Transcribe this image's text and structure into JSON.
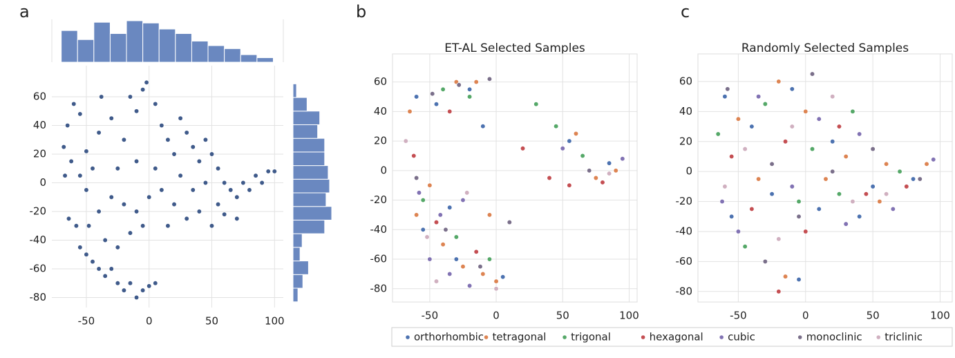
{
  "chart_data": [
    {
      "type": "scatter",
      "panel_label": "a",
      "color": "#3f5a8a",
      "hist_color": "#6a88c0",
      "grid": true,
      "xlim": [
        -77.5,
        107
      ],
      "ylim": [
        -87,
        81.7
      ],
      "xticks": [
        -50,
        0,
        50,
        100
      ],
      "yticks": [
        -80,
        -60,
        -40,
        -20,
        0,
        20,
        40,
        60
      ],
      "x": [
        -60,
        -55,
        -65,
        -68,
        -62,
        -67,
        -55,
        -45,
        -50,
        -40,
        -38,
        -30,
        -20,
        -15,
        -10,
        -5,
        -2,
        5,
        10,
        15,
        20,
        25,
        30,
        35,
        40,
        45,
        50,
        55,
        60,
        65,
        70,
        75,
        80,
        85,
        90,
        95,
        100,
        -64,
        -58,
        -55,
        -50,
        -45,
        -40,
        -35,
        -30,
        -25,
        -20,
        -15,
        -10,
        -5,
        0,
        5,
        -40,
        -30,
        -20,
        -10,
        0,
        10,
        20,
        30,
        40,
        50,
        60,
        70,
        -50,
        -35,
        -25,
        -15,
        -5,
        15,
        25,
        5,
        -10,
        -25,
        45,
        35,
        55,
        -48
      ],
      "y": [
        55,
        48,
        40,
        25,
        15,
        5,
        5,
        10,
        22,
        35,
        60,
        45,
        30,
        60,
        50,
        65,
        70,
        55,
        40,
        30,
        20,
        45,
        35,
        25,
        15,
        30,
        20,
        10,
        0,
        -5,
        -10,
        0,
        -5,
        5,
        0,
        8,
        8,
        -25,
        -30,
        -45,
        -50,
        -55,
        -60,
        -65,
        -60,
        -70,
        -75,
        -70,
        -80,
        -75,
        -72,
        -70,
        -20,
        -10,
        -15,
        -20,
        -10,
        -5,
        -15,
        -25,
        -20,
        -30,
        -22,
        -25,
        -5,
        -40,
        -45,
        -35,
        -30,
        -30,
        5,
        10,
        15,
        10,
        0,
        -5,
        -15,
        -30
      ],
      "top_hist": {
        "bins": [
          -70,
          -57,
          -44,
          -31,
          -18,
          -5,
          8,
          21,
          34,
          47,
          60,
          73,
          86,
          99
        ],
        "counts": [
          42,
          30,
          53,
          38,
          55,
          52,
          44,
          38,
          28,
          22,
          18,
          10,
          6
        ]
      },
      "right_hist": {
        "bins": [
          -83,
          -73.5,
          -64,
          -54.5,
          -45,
          -35.5,
          -26,
          -16.5,
          -7,
          2.5,
          12,
          21.5,
          31,
          40.5,
          50,
          59.5,
          69
        ],
        "counts": [
          7,
          14,
          22,
          10,
          13,
          45,
          55,
          47,
          52,
          50,
          45,
          45,
          35,
          38,
          20,
          5
        ]
      }
    },
    {
      "type": "scatter",
      "panel_label": "b",
      "title": "ET-AL Selected Samples",
      "grid": true,
      "xlim": [
        -78,
        106
      ],
      "ylim": [
        -89,
        79
      ],
      "xticks": [
        -50,
        0,
        50,
        100
      ],
      "yticks": [
        -80,
        -60,
        -40,
        -20,
        0,
        20,
        40,
        60
      ],
      "series": [
        {
          "name": "orthorhombic",
          "color": "#4c72b0",
          "x": [
            -60,
            -45,
            -20,
            -35,
            -55,
            5,
            55,
            85,
            -10,
            -30
          ],
          "y": [
            50,
            45,
            55,
            -25,
            -40,
            -72,
            20,
            5,
            30,
            -60
          ]
        },
        {
          "name": "tetragonal",
          "color": "#dd8452",
          "x": [
            -65,
            -50,
            -30,
            -15,
            -40,
            -25,
            -10,
            0,
            60,
            75,
            90,
            -5,
            -60
          ],
          "y": [
            40,
            -10,
            60,
            60,
            -50,
            -65,
            -70,
            -75,
            25,
            -5,
            0,
            -30,
            -30
          ]
        },
        {
          "name": "trigonal",
          "color": "#55a868",
          "x": [
            -40,
            -20,
            30,
            45,
            -55,
            -30,
            -5,
            65
          ],
          "y": [
            55,
            50,
            45,
            30,
            -20,
            -45,
            -60,
            10
          ]
        },
        {
          "name": "hexagonal",
          "color": "#c44e52",
          "x": [
            -62,
            -35,
            20,
            40,
            -45,
            -15,
            55,
            80
          ],
          "y": [
            10,
            40,
            15,
            -5,
            -35,
            -55,
            -10,
            -8
          ]
        },
        {
          "name": "cubic",
          "color": "#8172b3",
          "x": [
            -58,
            -42,
            -25,
            -50,
            -35,
            -20,
            50,
            95
          ],
          "y": [
            -15,
            -30,
            -20,
            -60,
            -70,
            -78,
            15,
            8
          ]
        },
        {
          "name": "monoclinic",
          "color": "#7a6f8a",
          "x": [
            -48,
            -28,
            -60,
            -38,
            -12,
            70,
            -5,
            10
          ],
          "y": [
            52,
            58,
            -5,
            -40,
            -65,
            0,
            62,
            -35
          ]
        },
        {
          "name": "triclinic",
          "color": "#d0b0c0",
          "x": [
            -68,
            -52,
            -22,
            -45,
            0,
            85
          ],
          "y": [
            20,
            -45,
            -15,
            -75,
            -80,
            -2
          ]
        }
      ]
    },
    {
      "type": "scatter",
      "panel_label": "c",
      "title": "Randomly Selected Samples",
      "grid": true,
      "xlim": [
        -80,
        109
      ],
      "ylim": [
        -87,
        78.4
      ],
      "xticks": [
        -50,
        0,
        50,
        100
      ],
      "yticks": [
        -80,
        -60,
        -40,
        -20,
        0,
        20,
        40,
        60
      ],
      "series": [
        {
          "name": "orthorhombic",
          "color": "#4c72b0",
          "x": [
            -60,
            -40,
            -10,
            20,
            50,
            80,
            -55,
            -25,
            10,
            40,
            -5
          ],
          "y": [
            50,
            30,
            55,
            20,
            -10,
            -5,
            -30,
            -15,
            -25,
            -30,
            -72
          ]
        },
        {
          "name": "tetragonal",
          "color": "#dd8452",
          "x": [
            -50,
            -20,
            0,
            30,
            60,
            90,
            -35,
            15,
            55,
            -15
          ],
          "y": [
            35,
            60,
            40,
            10,
            5,
            5,
            -5,
            -5,
            -20,
            -70
          ]
        },
        {
          "name": "trigonal",
          "color": "#55a868",
          "x": [
            -65,
            -30,
            5,
            35,
            70,
            -45,
            -5,
            25
          ],
          "y": [
            25,
            45,
            15,
            40,
            0,
            -50,
            -20,
            -15
          ]
        },
        {
          "name": "hexagonal",
          "color": "#c44e52",
          "x": [
            -55,
            -15,
            25,
            45,
            75,
            -40,
            0,
            -20
          ],
          "y": [
            10,
            20,
            30,
            -15,
            -10,
            -25,
            -40,
            -80
          ]
        },
        {
          "name": "cubic",
          "color": "#8172b3",
          "x": [
            -62,
            -35,
            10,
            40,
            65,
            95,
            -50,
            -10,
            30
          ],
          "y": [
            -20,
            50,
            35,
            25,
            -25,
            8,
            -40,
            -10,
            -35
          ]
        },
        {
          "name": "monoclinic",
          "color": "#7a6f8a",
          "x": [
            -58,
            -25,
            5,
            50,
            85,
            -30,
            20,
            -5
          ],
          "y": [
            55,
            5,
            65,
            15,
            -5,
            -60,
            0,
            -30
          ]
        },
        {
          "name": "triclinic",
          "color": "#d0b0c0",
          "x": [
            -45,
            -10,
            20,
            60,
            -60,
            35,
            -20
          ],
          "y": [
            15,
            30,
            50,
            -15,
            -10,
            -20,
            -45
          ]
        }
      ]
    }
  ]
}
